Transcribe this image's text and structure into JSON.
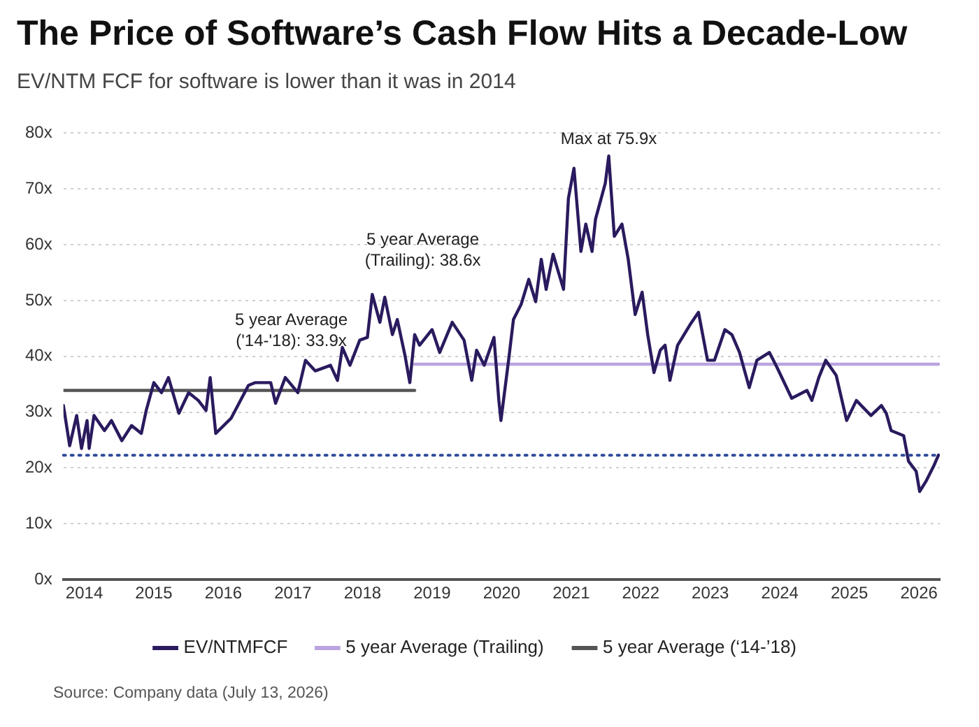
{
  "chart_data": {
    "type": "line",
    "title": "The Price of Software’s Cash Flow Hits a Decade-Low",
    "subtitle": "EV/NTM FCF for software is lower than it was in 2014",
    "series": [
      {
        "name": "EV/NTMFCF",
        "color": "#2a1a5e",
        "x": [
          2013.7,
          2013.79,
          2013.89,
          2013.96,
          2014.04,
          2014.07,
          2014.14,
          2014.29,
          2014.39,
          2014.54,
          2014.68,
          2014.82,
          2014.89,
          2015.0,
          2015.11,
          2015.21,
          2015.36,
          2015.5,
          2015.64,
          2015.75,
          2015.81,
          2015.89,
          2016.11,
          2016.36,
          2016.46,
          2016.68,
          2016.75,
          2016.89,
          2017.07,
          2017.18,
          2017.32,
          2017.54,
          2017.64,
          2017.71,
          2017.82,
          2017.96,
          2018.07,
          2018.14,
          2018.25,
          2018.32,
          2018.43,
          2018.5,
          2018.61,
          2018.68,
          2018.75,
          2018.82,
          2019.0,
          2019.11,
          2019.29,
          2019.46,
          2019.57,
          2019.64,
          2019.75,
          2019.89,
          2019.96,
          2019.99,
          2020.1,
          2020.17,
          2020.28,
          2020.39,
          2020.49,
          2020.57,
          2020.64,
          2020.74,
          2020.89,
          2020.96,
          2021.04,
          2021.14,
          2021.21,
          2021.3,
          2021.35,
          2021.42,
          2021.49,
          2021.54,
          2021.62,
          2021.73,
          2021.82,
          2021.92,
          2022.02,
          2022.1,
          2022.19,
          2022.28,
          2022.35,
          2022.42,
          2022.53,
          2022.71,
          2022.83,
          2022.96,
          2023.06,
          2023.21,
          2023.31,
          2023.42,
          2023.56,
          2023.67,
          2023.85,
          2023.96,
          2024.17,
          2024.39,
          2024.46,
          2024.56,
          2024.66,
          2024.81,
          2024.96,
          2025.1,
          2025.31,
          2025.46,
          2025.53,
          2025.6,
          2025.78,
          2025.85,
          2025.96,
          2026.01,
          2026.1,
          2026.21,
          2026.28
        ],
        "values": [
          31.2,
          24,
          29.4,
          23.5,
          28.5,
          23.5,
          29.4,
          26.7,
          28.5,
          24.9,
          27.6,
          26.2,
          30.3,
          35.3,
          33.5,
          36.2,
          29.8,
          33.5,
          32.1,
          30.3,
          36.2,
          26.2,
          28.9,
          34.8,
          35.3,
          35.3,
          31.6,
          36.2,
          33.5,
          39.3,
          37.4,
          38.4,
          35.7,
          41.6,
          38.4,
          42.9,
          43.4,
          51.1,
          46.1,
          50.6,
          43.9,
          46.6,
          40.2,
          35.3,
          43.9,
          42,
          44.8,
          40.7,
          46.1,
          42.9,
          35.7,
          41.1,
          38.4,
          43.4,
          32.1,
          28.5,
          39.3,
          46.6,
          49.3,
          53.8,
          49.8,
          57.4,
          52,
          58.3,
          52,
          68.3,
          73.7,
          58.8,
          63.7,
          58.8,
          64.6,
          67.8,
          71,
          75.9,
          61.5,
          63.7,
          57.4,
          47.5,
          51.5,
          43.9,
          37.1,
          41.1,
          42,
          35.7,
          42,
          45.7,
          47.9,
          39.3,
          39.3,
          44.8,
          43.9,
          40.7,
          34.4,
          39.3,
          40.7,
          38,
          32.5,
          33.9,
          32.1,
          36.2,
          39.3,
          36.6,
          28.5,
          32.1,
          29.4,
          31.2,
          29.8,
          26.7,
          25.8,
          21.2,
          19.4,
          15.8,
          17.6,
          20.3,
          22.3
        ]
      },
      {
        "name": "5 year Average (Trailing)",
        "color": "#b9a4e0",
        "x": [
          2018.75,
          2026.28
        ],
        "values": [
          38.6,
          38.6
        ]
      },
      {
        "name": "5 year Average (‘14-’18)",
        "color": "#555555",
        "x": [
          2013.7,
          2018.75
        ],
        "values": [
          33.9,
          33.9
        ]
      }
    ],
    "xlim": [
      2013.7,
      2026.3
    ],
    "xticks": [
      2014,
      2015,
      2016,
      2017,
      2018,
      2019,
      2020,
      2021,
      2022,
      2023,
      2024,
      2025,
      2026
    ],
    "ylim": [
      0,
      80
    ],
    "yticks": [
      {
        "value": 0,
        "label": "0x"
      },
      {
        "value": 10,
        "label": "10x"
      },
      {
        "value": 20,
        "label": "20x"
      },
      {
        "value": 30,
        "label": "30x"
      },
      {
        "value": 40,
        "label": "40x"
      },
      {
        "value": 50,
        "label": "50x"
      },
      {
        "value": 60,
        "label": "60x"
      },
      {
        "value": 70,
        "label": "70x"
      },
      {
        "value": 80,
        "label": "80x"
      }
    ],
    "ref_lines": [
      {
        "axis": "y",
        "value": 22.3,
        "color": "#2f4a9a",
        "line_style": "dotted"
      }
    ],
    "annotations": [
      "5 year Average\n('14-'18): 33.9x",
      "5 year Average\n(Trailing): 38.6x",
      {
        "text": "Max at 75.9x",
        "x": 2021.54,
        "y": 75.9
      },
      "Source: Company data (July 13, 2026)"
    ],
    "grid": "y",
    "legend": "bottom",
    "marker": "none",
    "line_style": "solid"
  }
}
